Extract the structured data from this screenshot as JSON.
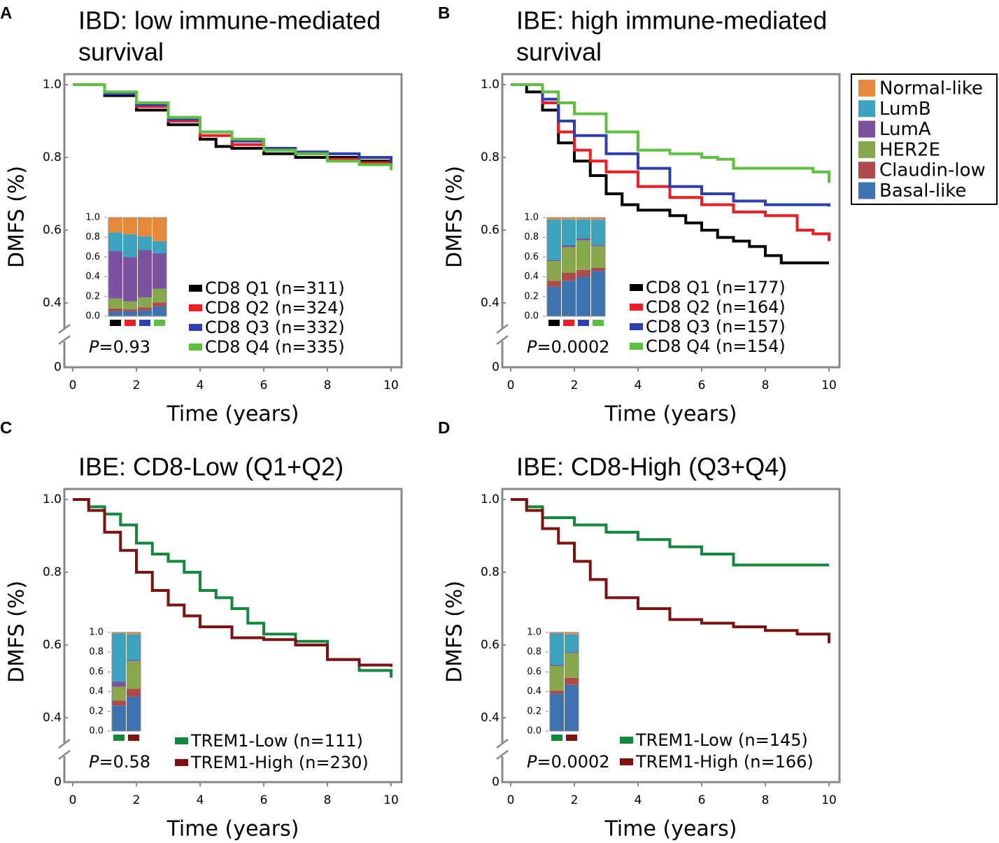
{
  "legend": {
    "names": [
      "Normal-like",
      "LumB",
      "LumA",
      "HER2E",
      "Claudin-low",
      "Basal-like"
    ],
    "colors": [
      "#e8883a",
      "#3ba3bd",
      "#7b52a0",
      "#86a84a",
      "#b04a4a",
      "#3f72b0"
    ]
  },
  "chart_data": [
    {
      "type": "line",
      "step": true,
      "panel": "A",
      "title_lines": [
        "IBD: low immune-mediated",
        "survival"
      ],
      "xlabel": "Time (years)",
      "ylabel": "DMFS (%)",
      "xlim": [
        0,
        10
      ],
      "xticks": [
        0,
        2,
        4,
        6,
        8,
        10
      ],
      "ylim": [
        0,
        1
      ],
      "y_break": [
        0.02,
        0.35
      ],
      "yticks": [
        0,
        0.4,
        0.6,
        0.8,
        {
          "value": 1,
          "label": "1.0"
        }
      ],
      "series": [
        {
          "name": "CD8 Q1 (n=311)",
          "color": "#000000",
          "x": [
            0,
            1,
            2,
            3,
            4,
            4.5,
            5,
            6,
            7,
            8,
            9,
            10
          ],
          "values": [
            1,
            0.97,
            0.93,
            0.89,
            0.85,
            0.83,
            0.825,
            0.81,
            0.8,
            0.8,
            0.79,
            0.78
          ]
        },
        {
          "name": "CD8 Q2 (n=324)",
          "color": "#ee1c25",
          "x": [
            0,
            1,
            2,
            3,
            4,
            5,
            6,
            7,
            8,
            9,
            10
          ],
          "values": [
            1,
            0.975,
            0.94,
            0.9,
            0.86,
            0.835,
            0.82,
            0.81,
            0.795,
            0.785,
            0.785
          ]
        },
        {
          "name": "CD8 Q3 (n=332)",
          "color": "#2b3fb0",
          "x": [
            0,
            1,
            2,
            3,
            4,
            5,
            6,
            7,
            8,
            9,
            10
          ],
          "values": [
            1,
            0.975,
            0.945,
            0.905,
            0.87,
            0.845,
            0.825,
            0.815,
            0.81,
            0.8,
            0.78
          ]
        },
        {
          "name": "CD8 Q4 (n=335)",
          "color": "#5dbf3f",
          "x": [
            0,
            1,
            2,
            3,
            4,
            5,
            6,
            7,
            8,
            9,
            10
          ],
          "values": [
            1,
            0.98,
            0.95,
            0.91,
            0.87,
            0.85,
            0.82,
            0.81,
            0.79,
            0.78,
            0.765
          ]
        }
      ],
      "pvalue": {
        "symbol": "P",
        "text": "=0.93"
      },
      "inset": {
        "type": "bar",
        "stacked": true,
        "ylim": [
          0,
          1
        ],
        "yticks": [
          {
            "value": 0,
            "label": "0.0"
          },
          0.2,
          0.4,
          0.6,
          0.8,
          {
            "value": 1,
            "label": "1.0"
          }
        ],
        "bars": [
          {
            "color": "#000000",
            "values": [
              0.05,
              0.03,
              0.1,
              0.48,
              0.19,
              0.15
            ]
          },
          {
            "color": "#ee1c25",
            "values": [
              0.05,
              0.02,
              0.08,
              0.45,
              0.23,
              0.17
            ]
          },
          {
            "color": "#2b3fb0",
            "values": [
              0.06,
              0.03,
              0.1,
              0.48,
              0.14,
              0.19
            ]
          },
          {
            "color": "#5dbf3f",
            "values": [
              0.1,
              0.04,
              0.14,
              0.36,
              0.12,
              0.24
            ]
          }
        ]
      }
    },
    {
      "type": "line",
      "step": true,
      "panel": "B",
      "title_lines": [
        "IBE: high immune-mediated",
        "survival"
      ],
      "xlabel": "Time (years)",
      "ylabel": "DMFS (%)",
      "xlim": [
        0,
        10
      ],
      "xticks": [
        0,
        2,
        4,
        6,
        8,
        10
      ],
      "ylim": [
        0,
        1
      ],
      "y_break": [
        0.02,
        0.35
      ],
      "yticks": [
        0,
        0.4,
        0.6,
        0.8,
        {
          "value": 1,
          "label": "1.0"
        }
      ],
      "series": [
        {
          "name": "CD8 Q1 (n=177)",
          "color": "#000000",
          "x": [
            0,
            0.5,
            1,
            1.5,
            2,
            2.5,
            3,
            3.5,
            4,
            5,
            5.5,
            6,
            6.5,
            7,
            7.5,
            8,
            8.5,
            10
          ],
          "values": [
            1,
            0.98,
            0.93,
            0.84,
            0.79,
            0.75,
            0.7,
            0.67,
            0.655,
            0.64,
            0.62,
            0.6,
            0.58,
            0.57,
            0.555,
            0.53,
            0.51,
            0.51
          ]
        },
        {
          "name": "CD8 Q2 (n=164)",
          "color": "#ee1c25",
          "x": [
            0,
            1,
            1.5,
            2,
            2.5,
            3,
            4,
            5,
            6,
            7,
            8,
            9,
            9.5,
            10
          ],
          "values": [
            1,
            0.95,
            0.87,
            0.82,
            0.79,
            0.76,
            0.72,
            0.69,
            0.67,
            0.65,
            0.64,
            0.6,
            0.59,
            0.57
          ]
        },
        {
          "name": "CD8 Q3 (n=157)",
          "color": "#2b3fb0",
          "x": [
            0,
            1,
            1.5,
            2,
            3,
            4,
            5,
            6,
            7,
            8,
            10
          ],
          "values": [
            1,
            0.96,
            0.9,
            0.86,
            0.81,
            0.77,
            0.72,
            0.7,
            0.68,
            0.67,
            0.665
          ]
        },
        {
          "name": "CD8 Q4 (n=154)",
          "color": "#5dbf3f",
          "x": [
            0,
            1,
            1.5,
            2,
            3,
            4,
            5,
            6,
            6.5,
            7,
            9.5,
            10
          ],
          "values": [
            1,
            0.98,
            0.95,
            0.92,
            0.87,
            0.82,
            0.81,
            0.8,
            0.795,
            0.77,
            0.76,
            0.73
          ]
        }
      ],
      "pvalue": {
        "symbol": "P",
        "text": "=0.0002"
      },
      "inset": {
        "type": "bar",
        "stacked": true,
        "ylim": [
          0,
          1
        ],
        "yticks": [
          {
            "value": 0,
            "label": "0.0"
          },
          0.2,
          0.4,
          0.6,
          0.8,
          {
            "value": 1,
            "label": "1.0"
          }
        ],
        "bars": [
          {
            "color": "#000000",
            "values": [
              0.3,
              0.06,
              0.2,
              0.01,
              0.41,
              0.02
            ]
          },
          {
            "color": "#ee1c25",
            "values": [
              0.36,
              0.08,
              0.26,
              0.02,
              0.26,
              0.02
            ]
          },
          {
            "color": "#2b3fb0",
            "values": [
              0.4,
              0.07,
              0.3,
              0.02,
              0.19,
              0.02
            ]
          },
          {
            "color": "#5dbf3f",
            "values": [
              0.46,
              0.03,
              0.22,
              0.01,
              0.26,
              0.02
            ]
          }
        ]
      }
    },
    {
      "type": "line",
      "step": true,
      "panel": "C",
      "title_lines": [
        "IBE: CD8-Low (Q1+Q2)"
      ],
      "xlabel": "Time (years)",
      "ylabel": "DMFS (%)",
      "xlim": [
        0,
        10
      ],
      "xticks": [
        0,
        2,
        4,
        6,
        8,
        10
      ],
      "ylim": [
        0,
        1
      ],
      "y_break": [
        0.02,
        0.35
      ],
      "yticks": [
        0,
        0.4,
        0.6,
        0.8,
        {
          "value": 1,
          "label": "1.0"
        }
      ],
      "series": [
        {
          "name": "TREM1-Low (n=111)",
          "color": "#12883c",
          "x": [
            0,
            0.5,
            1,
            1.5,
            2,
            2.5,
            3,
            3.5,
            4,
            4.5,
            5,
            5.5,
            6,
            7,
            8,
            9,
            10
          ],
          "values": [
            1,
            0.98,
            0.96,
            0.93,
            0.88,
            0.85,
            0.83,
            0.8,
            0.75,
            0.73,
            0.7,
            0.66,
            0.63,
            0.61,
            0.56,
            0.53,
            0.51
          ]
        },
        {
          "name": "TREM1-High (n=230)",
          "color": "#7c1212",
          "x": [
            0,
            0.5,
            1,
            1.5,
            2,
            2.5,
            3,
            3.5,
            4,
            5,
            6,
            7,
            8,
            9,
            10
          ],
          "values": [
            1,
            0.97,
            0.91,
            0.86,
            0.8,
            0.75,
            0.71,
            0.68,
            0.65,
            0.62,
            0.615,
            0.6,
            0.56,
            0.545,
            0.54
          ]
        }
      ],
      "pvalue": {
        "symbol": "P",
        "text": "=0.58"
      },
      "inset": {
        "type": "bar",
        "stacked": true,
        "ylim": [
          0,
          1
        ],
        "yticks": [
          {
            "value": 0,
            "label": "0.0"
          },
          0.2,
          0.4,
          0.6,
          0.8,
          {
            "value": 1,
            "label": "1.0"
          }
        ],
        "bars": [
          {
            "color": "#12883c",
            "values": [
              0.26,
              0.05,
              0.14,
              0.05,
              0.49,
              0.01
            ]
          },
          {
            "color": "#7c1212",
            "values": [
              0.35,
              0.08,
              0.28,
              0.01,
              0.26,
              0.02
            ]
          }
        ]
      }
    },
    {
      "type": "line",
      "step": true,
      "panel": "D",
      "title_lines": [
        "IBE: CD8-High (Q3+Q4)"
      ],
      "xlabel": "Time (years)",
      "ylabel": "DMFS (%)",
      "xlim": [
        0,
        10
      ],
      "xticks": [
        0,
        2,
        4,
        6,
        8,
        10
      ],
      "ylim": [
        0,
        1
      ],
      "y_break": [
        0.02,
        0.35
      ],
      "yticks": [
        0,
        0.4,
        0.6,
        0.8,
        {
          "value": 1,
          "label": "1.0"
        }
      ],
      "series": [
        {
          "name": "TREM1-Low (n=145)",
          "color": "#12883c",
          "x": [
            0,
            0.5,
            1,
            2,
            3,
            4,
            5,
            6,
            7,
            10
          ],
          "values": [
            1,
            0.98,
            0.95,
            0.93,
            0.91,
            0.89,
            0.87,
            0.85,
            0.82,
            0.82
          ]
        },
        {
          "name": "TREM1-High (n=166)",
          "color": "#7c1212",
          "x": [
            0,
            0.5,
            1,
            1.5,
            2,
            2.5,
            3,
            4,
            5,
            6,
            7,
            8,
            9,
            10
          ],
          "values": [
            1,
            0.97,
            0.92,
            0.88,
            0.83,
            0.78,
            0.73,
            0.7,
            0.67,
            0.66,
            0.65,
            0.64,
            0.63,
            0.605
          ]
        }
      ],
      "pvalue": {
        "symbol": "P",
        "text": "=0.0002"
      },
      "inset": {
        "type": "bar",
        "stacked": true,
        "ylim": [
          0,
          1
        ],
        "yticks": [
          {
            "value": 0,
            "label": "0.0"
          },
          0.2,
          0.4,
          0.6,
          0.8,
          {
            "value": 1,
            "label": "1.0"
          }
        ],
        "bars": [
          {
            "color": "#12883c",
            "values": [
              0.38,
              0.03,
              0.25,
              0.01,
              0.32,
              0.01
            ]
          },
          {
            "color": "#7c1212",
            "values": [
              0.47,
              0.07,
              0.25,
              0.01,
              0.18,
              0.02
            ]
          }
        ]
      }
    }
  ]
}
